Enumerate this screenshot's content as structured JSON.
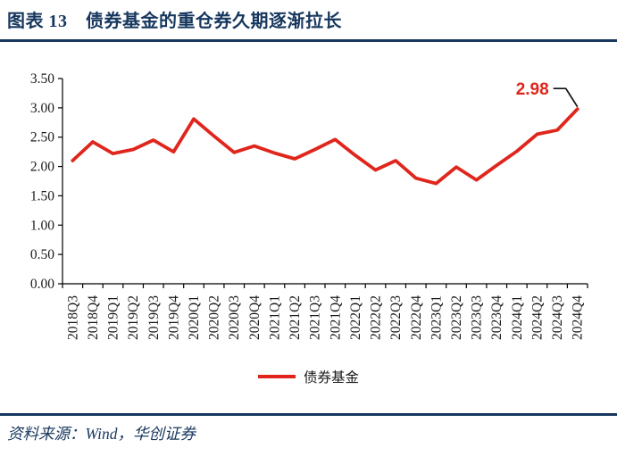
{
  "header": {
    "title": "图表 13　债券基金的重仓券久期逐渐拉长"
  },
  "footer": {
    "source": "资料来源：Wind，华创证券"
  },
  "colors": {
    "navy": "#17375E",
    "line_red": "#E0261C",
    "ink": "#1a1a1a"
  },
  "chart_data": {
    "type": "line",
    "title": "债券基金的重仓券久期逐渐拉长",
    "figure_label": "图表 13",
    "xlabel": "",
    "ylabel": "",
    "ylim": [
      0,
      3.5
    ],
    "ytick_labels": [
      "0.00",
      "0.50",
      "1.00",
      "1.50",
      "2.00",
      "2.50",
      "3.00",
      "3.50"
    ],
    "grid": false,
    "legend_position": "bottom",
    "categories": [
      "2018Q3",
      "2018Q4",
      "2019Q1",
      "2019Q2",
      "2019Q3",
      "2019Q4",
      "2020Q1",
      "2020Q2",
      "2020Q3",
      "2020Q4",
      "2021Q1",
      "2021Q2",
      "2021Q3",
      "2021Q4",
      "2022Q1",
      "2022Q2",
      "2022Q3",
      "2022Q4",
      "2023Q1",
      "2023Q2",
      "2023Q3",
      "2023Q4",
      "2024Q1",
      "2024Q2",
      "2024Q3",
      "2024Q4"
    ],
    "series": [
      {
        "name": "债券基金",
        "color": "#E0261C",
        "values": [
          2.1,
          2.42,
          2.22,
          2.29,
          2.45,
          2.25,
          2.81,
          2.52,
          2.24,
          2.35,
          2.23,
          2.13,
          2.29,
          2.46,
          2.19,
          1.94,
          2.1,
          1.8,
          1.71,
          1.99,
          1.77,
          2.02,
          2.26,
          2.55,
          2.62,
          2.98
        ]
      }
    ],
    "annotation": {
      "text": "2.98",
      "target_category": "2024Q4"
    }
  }
}
